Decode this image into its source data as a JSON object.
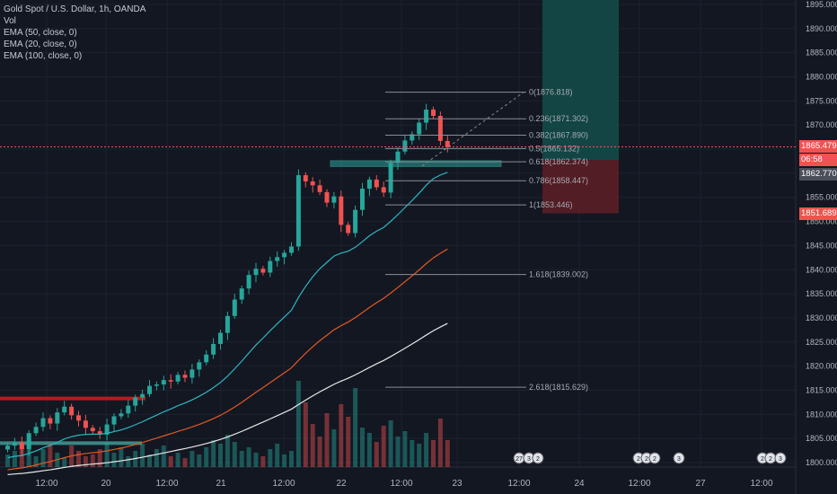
{
  "legend": {
    "title": "Gold Spot / U.S. Dollar, 1h, OANDA",
    "vol": "Vol",
    "ema1": "EMA (50, close, 0)",
    "ema2": "EMA (20, close, 0)",
    "ema3": "EMA (100, close, 0)"
  },
  "price_tags": {
    "last": "1865.479",
    "countdown": "06:58",
    "entry": "1862.770",
    "stop": "1851.689"
  },
  "colors": {
    "background": "#131722",
    "up": "#26a69a",
    "down": "#ef5350",
    "ema20": "#2bb7c2",
    "ema50": "#e25822",
    "ema100": "#e8e8e8",
    "fib": "#8a8d96",
    "grid": "#1e2230",
    "profit_zone": "#134e4a",
    "loss_zone": "#5a1e25"
  },
  "chart_data": {
    "type": "candlestick",
    "symbol": "Gold Spot / U.S. Dollar",
    "interval": "1h",
    "ylim": [
      1798,
      1897
    ],
    "y_ticks": [
      "1895.000",
      "1890.000",
      "1885.000",
      "1880.000",
      "1875.000",
      "1870.000",
      "1865.000",
      "1860.000",
      "1855.000",
      "1850.000",
      "1845.000",
      "1840.000",
      "1835.000",
      "1830.000",
      "1825.000",
      "1820.000",
      "1815.000",
      "1810.000",
      "1805.000",
      "1800.000"
    ],
    "x_ticks": [
      "12:00",
      "20",
      "12:00",
      "21",
      "12:00",
      "22",
      "12:00",
      "23",
      "12:00",
      "24",
      "12:00",
      "27",
      "12:00"
    ],
    "candles_close": [
      1803.5,
      1804.2,
      1802.8,
      1806.1,
      1807.4,
      1809.2,
      1808.1,
      1810.4,
      1811.6,
      1809.8,
      1808.7,
      1807.2,
      1806.5,
      1805.8,
      1807.9,
      1809.6,
      1810.2,
      1811.8,
      1813.5,
      1814.2,
      1815.9,
      1816.2,
      1817.1,
      1816.8,
      1818.2,
      1817.6,
      1819.3,
      1820.8,
      1822.4,
      1824.6,
      1826.9,
      1830.4,
      1833.8,
      1836.1,
      1838.9,
      1840.2,
      1839.4,
      1841.8,
      1842.6,
      1843.5,
      1844.8,
      1859.6,
      1858.3,
      1857.5,
      1856.1,
      1853.9,
      1855.2,
      1849.3,
      1847.6,
      1852.4,
      1856.8,
      1858.7,
      1857.1,
      1856.0,
      1862.2,
      1864.5,
      1866.8,
      1868.1,
      1870.5,
      1873.2,
      1871.9,
      1866.7,
      1865.5
    ],
    "fibonacci": [
      {
        "ratio": "0",
        "label": "0(1876.818)",
        "price": 1876.818
      },
      {
        "ratio": "0.236",
        "label": "0.236(1871.302)",
        "price": 1871.302
      },
      {
        "ratio": "0.382",
        "label": "0.382(1867.890)",
        "price": 1867.89
      },
      {
        "ratio": "0.5",
        "label": "0.5(1865.132)",
        "price": 1865.132
      },
      {
        "ratio": "0.618",
        "label": "0.618(1862.374)",
        "price": 1862.374
      },
      {
        "ratio": "0.786",
        "label": "0.786(1858.447)",
        "price": 1858.447
      },
      {
        "ratio": "1",
        "label": "1(1853.446)",
        "price": 1853.446
      },
      {
        "ratio": "1.618",
        "label": "1.618(1839.002)",
        "price": 1839.002
      },
      {
        "ratio": "2.618",
        "label": "2.618(1815.629)",
        "price": 1815.629
      }
    ],
    "last_price": 1865.479,
    "position": {
      "entry": 1862.77,
      "stop": 1851.689,
      "target_above_chart": true
    },
    "support_zone": [
      1861.4,
      1862.6
    ],
    "resistance_old": 1813.3,
    "event_badges": [
      "27",
      "3",
      "2",
      "2",
      "2",
      "2",
      "3",
      "2",
      "2",
      "3"
    ]
  }
}
